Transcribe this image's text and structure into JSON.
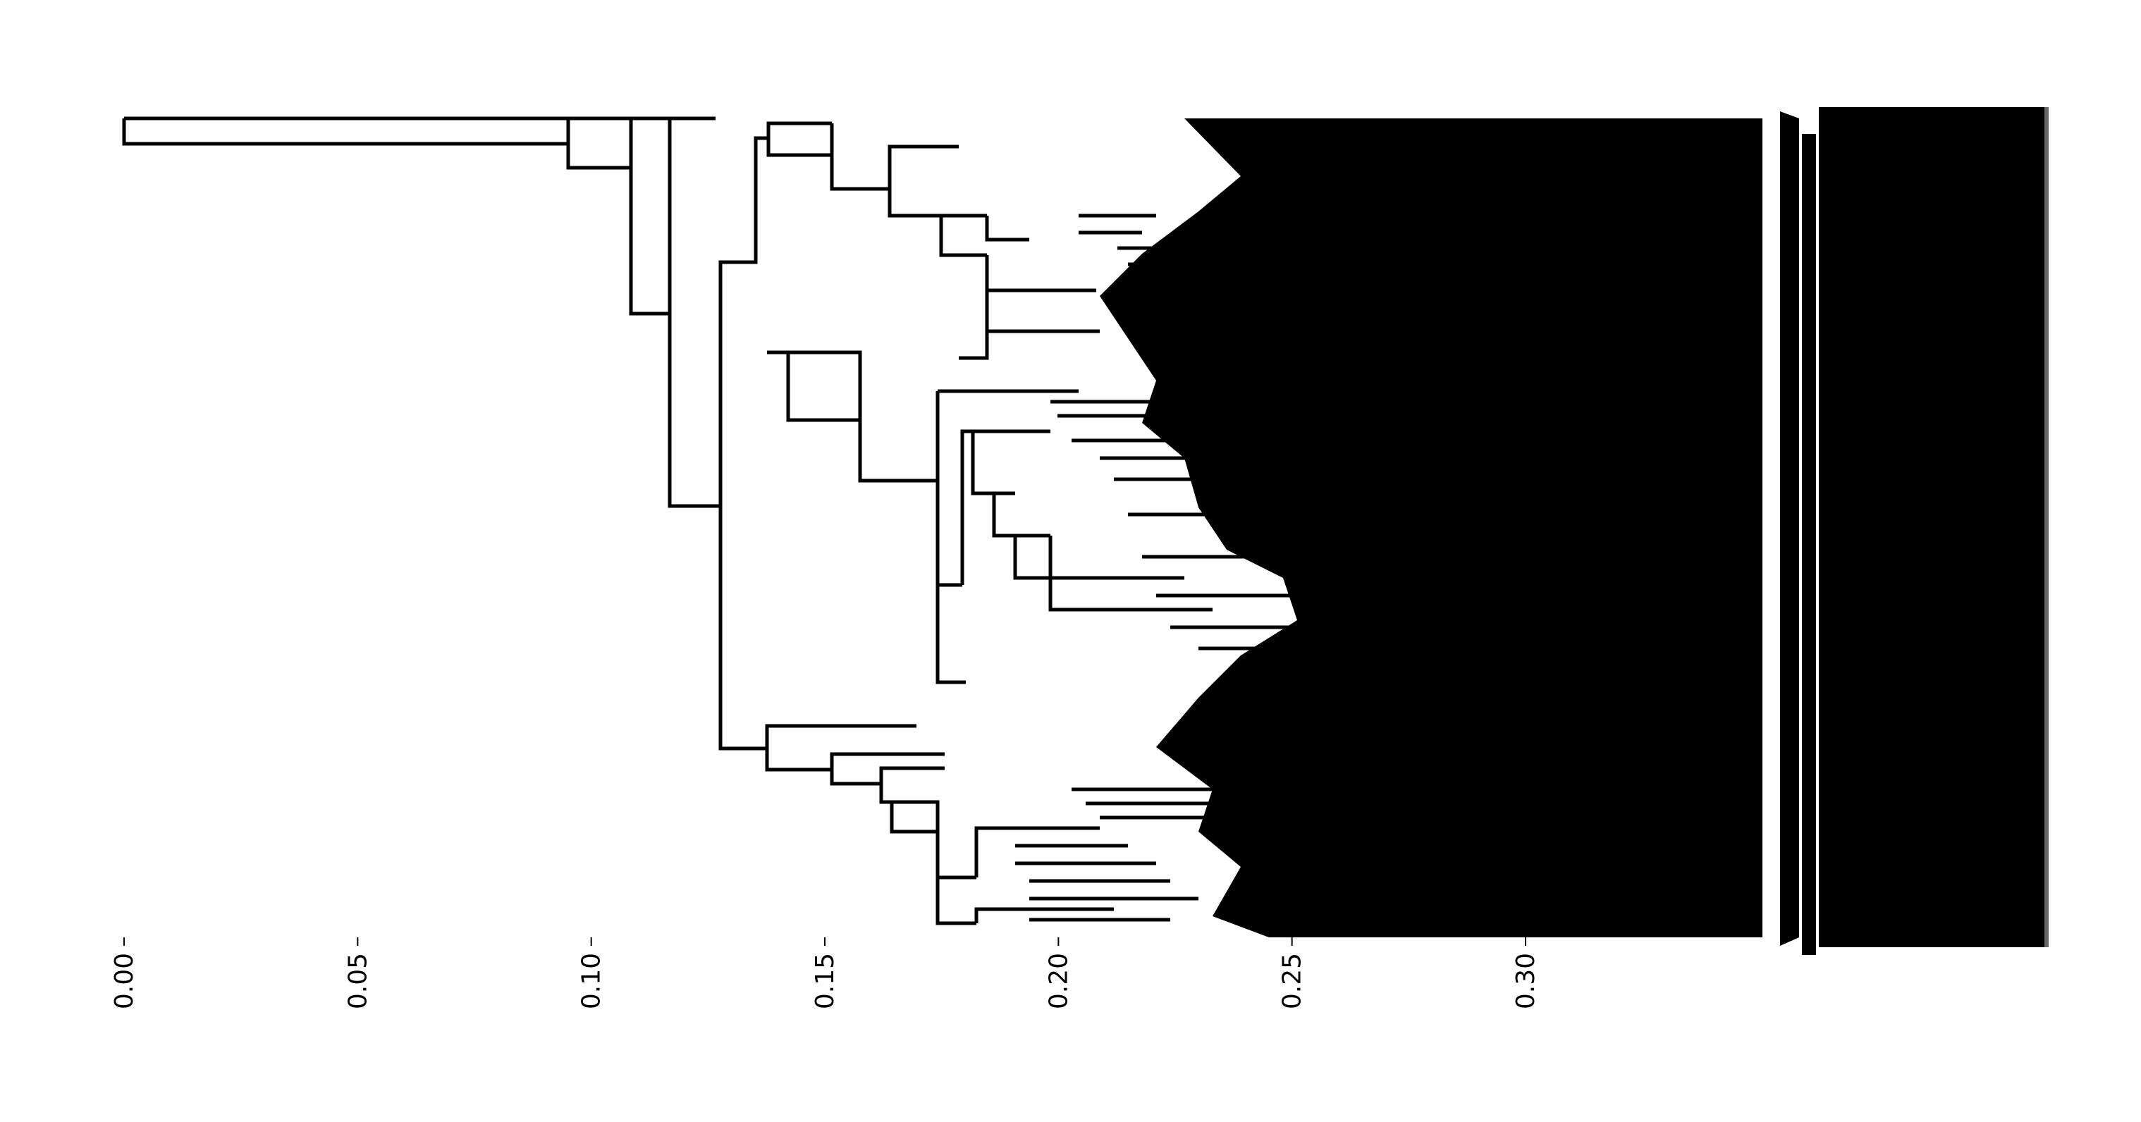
{
  "axis": {
    "ticks": [
      "0.00",
      "0.05",
      "0.10",
      "0.15",
      "0.20",
      "0.25",
      "0.30"
    ],
    "tick_values": [
      0.0,
      0.05,
      0.1,
      0.15,
      0.2,
      0.25,
      0.3
    ],
    "range": [
      0.0,
      0.35
    ]
  },
  "colors": {
    "ink": "#000000",
    "background": "#ffffff"
  },
  "leaf_labels": {
    "legible": false
  }
}
